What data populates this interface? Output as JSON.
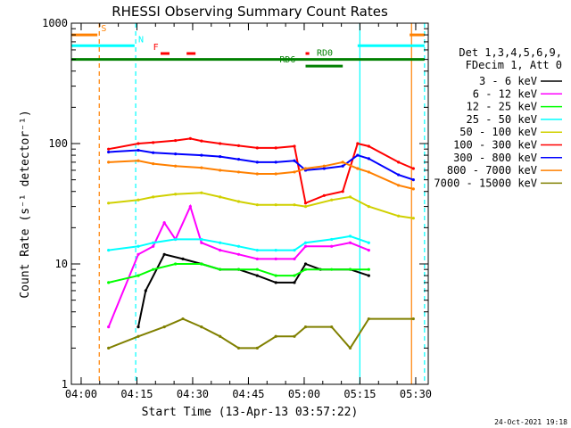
{
  "chart_data": {
    "type": "line",
    "title": "RHESSI Observing Summary Count Rates",
    "xlabel": "Start Time (13-Apr-13 03:57:22)",
    "ylabel": "Count Rate (s⁻¹ detector⁻¹)",
    "ylim": [
      1,
      1000
    ],
    "yscale": "log",
    "xlim_minutes": [
      0,
      96
    ],
    "x_tick_labels": [
      "04:00",
      "04:15",
      "04:30",
      "04:45",
      "05:00",
      "05:15",
      "05:30"
    ],
    "x_tick_minutes": [
      2.63,
      17.63,
      32.63,
      47.63,
      62.63,
      77.63,
      92.63
    ],
    "y_tick_labels": [
      "1",
      "10",
      "100",
      "1000"
    ],
    "y_tick_values": [
      1,
      10,
      100,
      1000
    ],
    "grid": false,
    "legend_position": "right",
    "legend_header": [
      "Det 1,3,4,5,6,9,",
      "FDecim 1, Att 0"
    ],
    "footer_date": "24-Oct-2021 19:18",
    "series": [
      {
        "name": "3 - 6 keV",
        "color": "#000000",
        "x": [
          18,
          20,
          25,
          30,
          35,
          40,
          45,
          50,
          55,
          60,
          63,
          67,
          75,
          80
        ],
        "values": [
          3,
          6,
          12,
          11,
          10,
          9,
          9,
          8,
          7,
          7,
          10,
          9,
          9,
          8
        ]
      },
      {
        "name": "6 - 12 keV",
        "color": "#ff00ff",
        "x": [
          10,
          18,
          22,
          25,
          28,
          32,
          35,
          40,
          45,
          50,
          55,
          60,
          63,
          70,
          75,
          80
        ],
        "values": [
          3,
          12,
          14,
          22,
          16,
          30,
          15,
          13,
          12,
          11,
          11,
          11,
          14,
          14,
          15,
          13
        ]
      },
      {
        "name": "12 - 25 keV",
        "color": "#00ff00",
        "x": [
          10,
          18,
          22,
          28,
          35,
          40,
          45,
          50,
          55,
          60,
          63,
          70,
          75,
          80
        ],
        "values": [
          7,
          8,
          9,
          10,
          10,
          9,
          9,
          9,
          8,
          8,
          9,
          9,
          9,
          9
        ]
      },
      {
        "name": "25 - 50 keV",
        "color": "#00ffff",
        "x": [
          10,
          18,
          22,
          28,
          35,
          40,
          45,
          50,
          55,
          60,
          63,
          70,
          75,
          80
        ],
        "values": [
          13,
          14,
          15,
          16,
          16,
          15,
          14,
          13,
          13,
          13,
          15,
          16,
          17,
          15
        ]
      },
      {
        "name": "50 - 100 keV",
        "color": "#d0d000",
        "x": [
          10,
          18,
          22,
          28,
          35,
          40,
          45,
          50,
          55,
          60,
          63,
          70,
          75,
          80,
          88,
          92
        ],
        "values": [
          32,
          34,
          36,
          38,
          39,
          36,
          33,
          31,
          31,
          31,
          30,
          34,
          36,
          30,
          25,
          24
        ]
      },
      {
        "name": "100 - 300 keV",
        "color": "#ff0000",
        "x": [
          10,
          18,
          22,
          28,
          32,
          35,
          40,
          45,
          50,
          55,
          60,
          63,
          68,
          73,
          77,
          80,
          88,
          92
        ],
        "values": [
          90,
          100,
          102,
          106,
          110,
          105,
          100,
          96,
          92,
          92,
          95,
          32,
          37,
          40,
          100,
          95,
          70,
          62
        ]
      },
      {
        "name": "300 - 800 keV",
        "color": "#0000ff",
        "x": [
          10,
          18,
          22,
          28,
          35,
          40,
          45,
          50,
          55,
          60,
          63,
          68,
          73,
          77,
          80,
          88,
          92
        ],
        "values": [
          85,
          88,
          84,
          82,
          80,
          78,
          74,
          70,
          70,
          72,
          60,
          62,
          65,
          80,
          75,
          55,
          50
        ]
      },
      {
        "name": "800 - 7000 keV",
        "color": "#ff8000",
        "x": [
          10,
          18,
          22,
          28,
          35,
          40,
          45,
          50,
          55,
          60,
          63,
          68,
          73,
          77,
          80,
          88,
          92
        ],
        "values": [
          70,
          72,
          68,
          65,
          63,
          60,
          58,
          56,
          56,
          58,
          62,
          65,
          70,
          62,
          58,
          45,
          42
        ]
      },
      {
        "name": "7000 - 15000 keV",
        "color": "#808000",
        "x": [
          10,
          18,
          25,
          30,
          35,
          40,
          45,
          50,
          55,
          60,
          63,
          70,
          75,
          80,
          92
        ],
        "values": [
          2,
          2.5,
          3,
          3.5,
          3,
          2.5,
          2,
          2,
          2.5,
          2.5,
          3,
          3,
          2,
          3.5,
          3.5
        ]
      }
    ],
    "flags": [
      {
        "label": "S",
        "color": "#ff8000",
        "segments": [
          [
            0,
            7
          ],
          [
            91,
            95
          ]
        ],
        "level": 800,
        "label_minute": 8
      },
      {
        "label": "N",
        "color": "#00ffff",
        "segments": [
          [
            0,
            17
          ],
          [
            77,
            95
          ]
        ],
        "level": 650,
        "label_minute": 18
      },
      {
        "label": "F",
        "color": "#ff0000",
        "segments": [
          [
            24,
            28
          ],
          [
            31,
            35
          ],
          [
            63,
            64
          ]
        ],
        "level": 560,
        "label_minute": 22,
        "dashed": true
      },
      {
        "label": "RD0",
        "color": "#008000",
        "segments": [
          [
            0,
            95
          ]
        ],
        "level": 500,
        "label_minute": 66
      },
      {
        "label": "RD6",
        "color": "#008000",
        "segments": [
          [
            63,
            73
          ]
        ],
        "level": 440,
        "label_minute": 56
      }
    ],
    "vertical_lines": [
      {
        "minute": 7.5,
        "color": "#ff8000",
        "dashed": true
      },
      {
        "minute": 17.3,
        "color": "#00ffff",
        "dashed": true
      },
      {
        "minute": 77.6,
        "color": "#00ffff",
        "dashed": false
      },
      {
        "minute": 91.5,
        "color": "#ff8000",
        "dashed": false
      },
      {
        "minute": 95,
        "color": "#00ffff",
        "dashed": true
      }
    ]
  }
}
